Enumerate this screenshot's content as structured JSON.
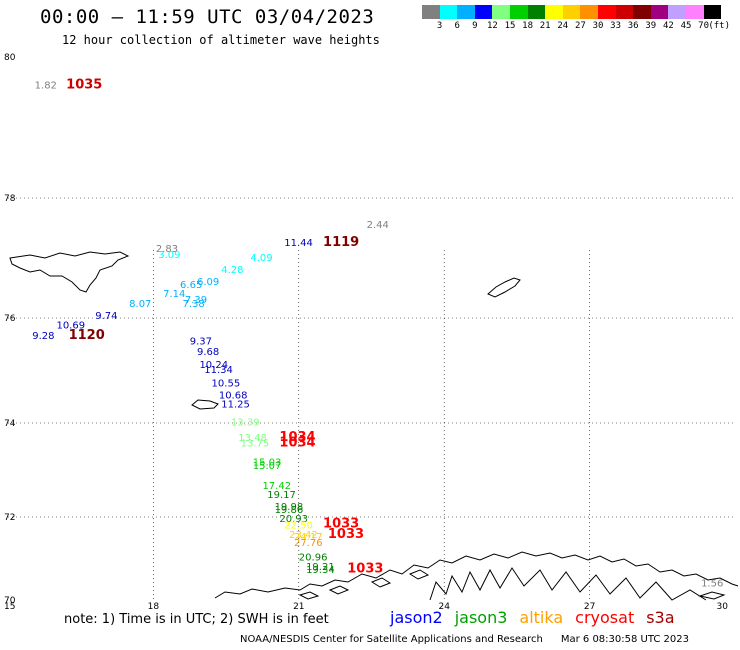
{
  "title": "00:00 – 11:59 UTC 03/04/2023",
  "subtitle": "12 hour collection of altimeter wave heights",
  "legend": {
    "colors": [
      "#808080",
      "#00ffff",
      "#00b0ff",
      "#0000ff",
      "#80ff80",
      "#00d000",
      "#008000",
      "#ffff00",
      "#ffd000",
      "#ff9000",
      "#ff0000",
      "#cc0000",
      "#800000",
      "#a0007f",
      "#c0a0ff",
      "#ff80ff",
      "#000000"
    ],
    "labels": [
      "3",
      "6",
      "9",
      "12",
      "15",
      "18",
      "21",
      "24",
      "27",
      "30",
      "33",
      "36",
      "39",
      "42",
      "45",
      "70"
    ],
    "unit": "(ft)"
  },
  "axes": {
    "lon_ticks": [
      "15",
      "18",
      "21",
      "24",
      "27",
      "30"
    ],
    "lat_ticks": [
      "80",
      "78",
      "76",
      "74",
      "72",
      "70"
    ]
  },
  "observations": [
    {
      "text": "1.82",
      "lon": 15.55,
      "lat": 79.55,
      "color": "#808080"
    },
    {
      "text": "1035",
      "lon": 16.2,
      "lat": 79.55,
      "color": "#cc0000",
      "big": true
    },
    {
      "text": "2.44",
      "lon": 22.4,
      "lat": 77.5,
      "color": "#808080"
    },
    {
      "text": "2.83",
      "lon": 18.05,
      "lat": 77.1,
      "color": "#808080"
    },
    {
      "text": "3.09",
      "lon": 18.1,
      "lat": 77.0,
      "color": "#00ffff"
    },
    {
      "text": "4.09",
      "lon": 20.0,
      "lat": 76.95,
      "color": "#00ffff"
    },
    {
      "text": "4.28",
      "lon": 19.4,
      "lat": 76.75,
      "color": "#00ffff"
    },
    {
      "text": "6.09",
      "lon": 18.9,
      "lat": 76.55,
      "color": "#00b0ff"
    },
    {
      "text": "6.65",
      "lon": 18.55,
      "lat": 76.5,
      "color": "#00b0ff"
    },
    {
      "text": "7.14",
      "lon": 18.2,
      "lat": 76.35,
      "color": "#00b0ff"
    },
    {
      "text": "7.39",
      "lon": 18.65,
      "lat": 76.25,
      "color": "#00b0ff"
    },
    {
      "text": "7.38",
      "lon": 18.6,
      "lat": 76.18,
      "color": "#00b0ff"
    },
    {
      "text": "8.07",
      "lon": 17.5,
      "lat": 76.18,
      "color": "#00b0ff"
    },
    {
      "text": "9.74",
      "lon": 16.8,
      "lat": 75.98,
      "color": "#0000c0"
    },
    {
      "text": "10.69",
      "lon": 16.0,
      "lat": 75.8,
      "color": "#0000c0"
    },
    {
      "text": "9.28",
      "lon": 15.5,
      "lat": 75.6,
      "color": "#0000c0"
    },
    {
      "text": "1120",
      "lon": 16.25,
      "lat": 75.6,
      "color": "#800000",
      "big": true
    },
    {
      "text": "11.44",
      "lon": 20.7,
      "lat": 77.2,
      "color": "#0000c0"
    },
    {
      "text": "1119",
      "lon": 21.5,
      "lat": 77.2,
      "color": "#800000",
      "big": true
    },
    {
      "text": "9.37",
      "lon": 18.75,
      "lat": 75.5,
      "color": "#0000c0"
    },
    {
      "text": "9.68",
      "lon": 18.9,
      "lat": 75.3,
      "color": "#0000c0"
    },
    {
      "text": "10.24",
      "lon": 18.95,
      "lat": 75.05,
      "color": "#0000c0"
    },
    {
      "text": "11.34",
      "lon": 19.05,
      "lat": 74.95,
      "color": "#0000c0"
    },
    {
      "text": "10.55",
      "lon": 19.2,
      "lat": 74.7,
      "color": "#0000c0"
    },
    {
      "text": "10.68",
      "lon": 19.35,
      "lat": 74.47,
      "color": "#0000c0"
    },
    {
      "text": "11.25",
      "lon": 19.4,
      "lat": 74.3,
      "color": "#0000c0"
    },
    {
      "text": "13.39",
      "lon": 19.6,
      "lat": 73.95,
      "color": "#80ff80"
    },
    {
      "text": "13.48",
      "lon": 19.75,
      "lat": 73.62,
      "color": "#80ff80"
    },
    {
      "text": "13.75",
      "lon": 19.8,
      "lat": 73.5,
      "color": "#80ff80"
    },
    {
      "text": "1034",
      "lon": 20.6,
      "lat": 73.62,
      "color": "#ff0000",
      "big": true
    },
    {
      "text": "1034",
      "lon": 20.6,
      "lat": 73.5,
      "color": "#ff0000",
      "big": true
    },
    {
      "text": "15.03",
      "lon": 20.05,
      "lat": 73.1,
      "color": "#00d000"
    },
    {
      "text": "15.07",
      "lon": 20.05,
      "lat": 73.02,
      "color": "#00d000"
    },
    {
      "text": "17.42",
      "lon": 20.25,
      "lat": 72.6,
      "color": "#00d000"
    },
    {
      "text": "19.17",
      "lon": 20.35,
      "lat": 72.4,
      "color": "#008000"
    },
    {
      "text": "19.98",
      "lon": 20.5,
      "lat": 72.15,
      "color": "#008000"
    },
    {
      "text": "19.86",
      "lon": 20.5,
      "lat": 72.08,
      "color": "#008000"
    },
    {
      "text": "20.93",
      "lon": 20.6,
      "lat": 71.88,
      "color": "#008000"
    },
    {
      "text": "22.50",
      "lon": 20.7,
      "lat": 71.72,
      "color": "#ffff00"
    },
    {
      "text": "1033",
      "lon": 21.5,
      "lat": 71.75,
      "color": "#ff0000",
      "big": true
    },
    {
      "text": "1033",
      "lon": 21.6,
      "lat": 71.5,
      "color": "#ff0000",
      "big": true
    },
    {
      "text": "23.42",
      "lon": 20.8,
      "lat": 71.5,
      "color": "#ffd000"
    },
    {
      "text": "24.17",
      "lon": 20.9,
      "lat": 71.45,
      "color": "#ffd000"
    },
    {
      "text": "27.76",
      "lon": 20.9,
      "lat": 71.3,
      "color": "#ff9000"
    },
    {
      "text": "20.96",
      "lon": 21.0,
      "lat": 70.95,
      "color": "#008000"
    },
    {
      "text": "19.21",
      "lon": 21.15,
      "lat": 70.72,
      "color": "#008000"
    },
    {
      "text": "19.34",
      "lon": 21.15,
      "lat": 70.65,
      "color": "#008000"
    },
    {
      "text": "1033",
      "lon": 22.0,
      "lat": 70.66,
      "color": "#ff0000",
      "big": true
    },
    {
      "text": "1.56",
      "lon": 29.3,
      "lat": 70.33,
      "color": "#808080"
    }
  ],
  "footer": {
    "note": "note:  1) Time is in UTC;  2) SWH is in feet",
    "satellites": [
      {
        "name": "jason2",
        "color": "#0000ff"
      },
      {
        "name": "jason3",
        "color": "#00a000"
      },
      {
        "name": "altika",
        "color": "#ffa000"
      },
      {
        "name": "cryosat",
        "color": "#ff0000"
      },
      {
        "name": "s3a",
        "color": "#a00000"
      }
    ],
    "credit": "NOAA/NESDIS Center for Satellite Applications and Research",
    "timestamp": "Mar  6 08:30:58 UTC 2023"
  }
}
